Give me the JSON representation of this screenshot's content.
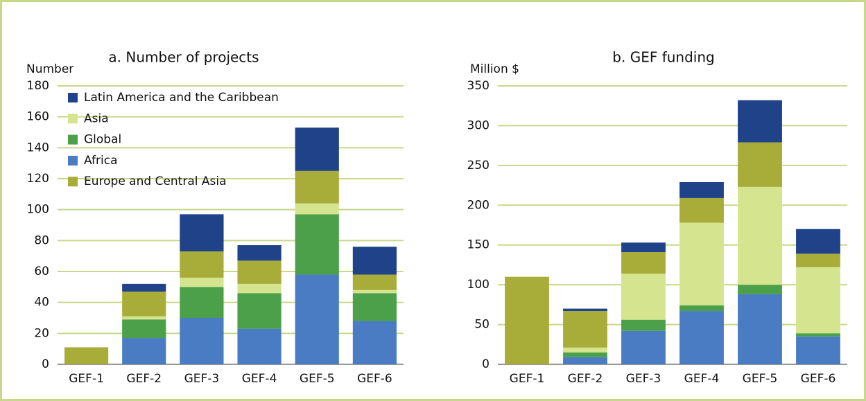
{
  "chart_data": [
    {
      "type": "bar",
      "stacked": true,
      "title": "a. Number of projects",
      "ylabel": "Number",
      "categories": [
        "GEF-1",
        "GEF-2",
        "GEF-3",
        "GEF-4",
        "GEF-5",
        "GEF-6"
      ],
      "ylim": [
        0,
        180
      ],
      "yticks": [
        0,
        20,
        40,
        60,
        80,
        100,
        120,
        140,
        160,
        180
      ],
      "grid": true,
      "legend": "upper left",
      "series": [
        {
          "name": "Latin America and the Caribbean",
          "color": "#1f4289",
          "values": [
            0,
            5,
            24,
            10,
            28,
            18
          ]
        },
        {
          "name": "Asia",
          "color": "#d4e48f",
          "values": [
            0,
            2,
            6,
            6,
            7,
            2
          ]
        },
        {
          "name": "Global",
          "color": "#4da04a",
          "values": [
            0,
            12,
            20,
            23,
            39,
            18
          ]
        },
        {
          "name": "Africa",
          "color": "#4a7cc4",
          "values": [
            0,
            17,
            30,
            23,
            58,
            28
          ]
        },
        {
          "name": "Europe and Central Asia",
          "color": "#a8ad3a",
          "values": [
            11,
            16,
            17,
            15,
            21,
            10
          ]
        }
      ]
    },
    {
      "type": "bar",
      "stacked": true,
      "title": "b. GEF funding",
      "ylabel": "Million $",
      "categories": [
        "GEF-1",
        "GEF-2",
        "GEF-3",
        "GEF-4",
        "GEF-5",
        "GEF-6"
      ],
      "ylim": [
        0,
        350
      ],
      "yticks": [
        0,
        50,
        100,
        150,
        200,
        250,
        300,
        350
      ],
      "grid": true,
      "series": [
        {
          "color": "#1f4289",
          "values": [
            0,
            3,
            12,
            20,
            53,
            31
          ]
        },
        {
          "color": "#d4e48f",
          "values": [
            0,
            6,
            58,
            104,
            123,
            83
          ]
        },
        {
          "color": "#4da04a",
          "values": [
            0,
            6,
            14,
            7,
            12,
            4
          ]
        },
        {
          "color": "#4a7cc4",
          "values": [
            0,
            9,
            42,
            67,
            88,
            35
          ]
        },
        {
          "color": "#a8ad3a",
          "values": [
            110,
            46,
            27,
            31,
            56,
            17
          ]
        }
      ]
    }
  ]
}
